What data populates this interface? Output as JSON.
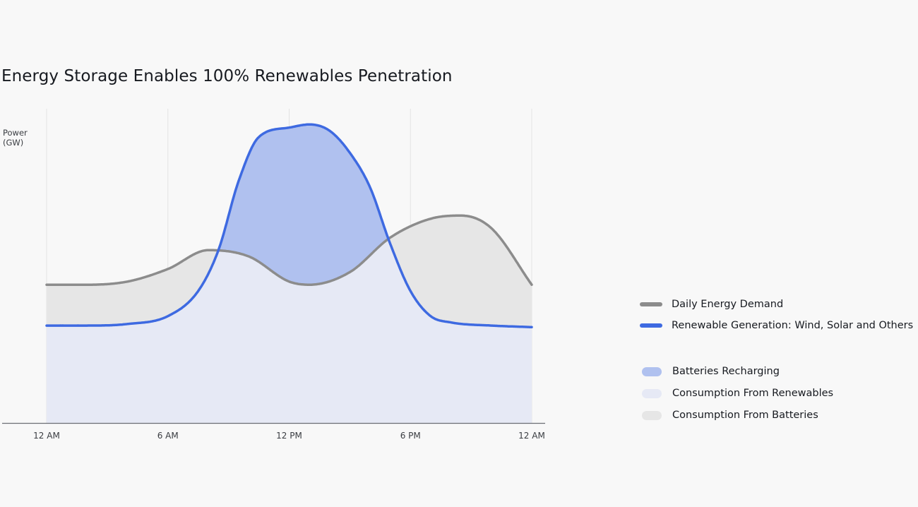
{
  "title": "Energy Storage Enables 100% Renewables Penetration",
  "y_axis": {
    "label_line1": "Power",
    "label_line2": "(GW)"
  },
  "legend": {
    "demand": "Daily Energy Demand",
    "renewable": "Renewable Generation: Wind, Solar and Others",
    "recharging": "Batteries Recharging",
    "from_renewables": "Consumption From Renewables",
    "from_batteries": "Consumption From Batteries"
  },
  "colors": {
    "demand": "#8c8c8c",
    "renewable": "#3e6ae1",
    "recharging": "#b0c1ef",
    "from_renewables": "#e6e9f5",
    "from_batteries": "#e6e6e6"
  },
  "chart_data": {
    "type": "area",
    "title": "Energy Storage Enables 100% Renewables Penetration",
    "ylabel": "Power (GW)",
    "xlabel": "",
    "x_ticks": [
      "12 AM",
      "6 AM",
      "12 PM",
      "6 PM",
      "12 AM"
    ],
    "x_hours": [
      0,
      6,
      12,
      18,
      24
    ],
    "xlim": [
      0,
      24
    ],
    "ylim": [
      0,
      10
    ],
    "y_ticks_visible": false,
    "grid": "vertical",
    "series": [
      {
        "name": "Daily Energy Demand",
        "x": [
          0,
          2,
          4,
          6,
          8,
          10,
          12,
          13,
          15,
          17,
          19,
          20.5,
          22,
          24
        ],
        "y": [
          4.4,
          4.4,
          4.5,
          4.9,
          5.5,
          5.3,
          4.5,
          4.4,
          4.8,
          5.9,
          6.5,
          6.6,
          6.2,
          4.4
        ]
      },
      {
        "name": "Renewable Generation: Wind, Solar and Others",
        "x": [
          0,
          2,
          4,
          6,
          7.5,
          8.5,
          9.5,
          10.5,
          12,
          13,
          14,
          15,
          16,
          17,
          18,
          19,
          20,
          22,
          24
        ],
        "y": [
          3.1,
          3.1,
          3.15,
          3.4,
          4.2,
          5.5,
          7.7,
          9.1,
          9.4,
          9.5,
          9.3,
          8.6,
          7.5,
          5.7,
          4.2,
          3.4,
          3.2,
          3.1,
          3.05
        ]
      }
    ]
  }
}
